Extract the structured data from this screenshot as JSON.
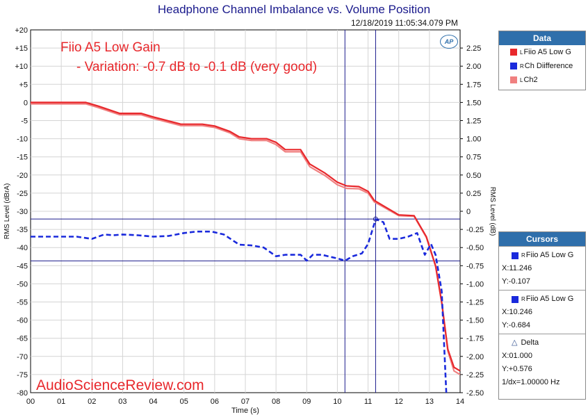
{
  "chart_data": {
    "type": "line",
    "title": "Headphone Channel Imbalance vs. Volume Position",
    "timestamp": "12/18/2019 11:05:34.079 PM",
    "annotation_line1": "Fiio A5 Low Gain",
    "annotation_line2": "- Variation: -0.7 dB to -0.1 dB (very good)",
    "watermark": "AudioScienceReview.com",
    "ap_logo_text": "AP",
    "xlabel": "Time (s)",
    "ylabel_left": "RMS Level (dBrA)",
    "ylabel_right": "RMS Level (dB)",
    "xlim": [
      0,
      14
    ],
    "ylim_left": [
      -80,
      20
    ],
    "ylim_right": [
      -2.5,
      2.5
    ],
    "x_ticks": [
      "00",
      "01",
      "02",
      "03",
      "04",
      "05",
      "06",
      "07",
      "08",
      "09",
      "10",
      "11",
      "12",
      "13",
      "14"
    ],
    "y_left_ticks": [
      "+20",
      "+15",
      "+10",
      "+5",
      "0",
      "-5",
      "-10",
      "-15",
      "-20",
      "-25",
      "-30",
      "-35",
      "-40",
      "-45",
      "-50",
      "-55",
      "-60",
      "-65",
      "-70",
      "-75",
      "-80"
    ],
    "y_right_ticks": [
      "2.25",
      "2.00",
      "1.75",
      "1.50",
      "1.25",
      "1.00",
      "0.75",
      "0.50",
      "0.25",
      "0",
      "-0.25",
      "-0.50",
      "-0.75",
      "-1.00",
      "-1.25",
      "-1.50",
      "-1.75",
      "-2.00",
      "-2.25",
      "-2.50"
    ],
    "grid": true,
    "series": [
      {
        "name": "Fiio A5 Low G",
        "color": "#e8282c",
        "axis": "left",
        "style": "solid",
        "x": [
          0,
          1.0,
          1.8,
          2.2,
          2.9,
          3.6,
          4.0,
          4.9,
          5.6,
          6.0,
          6.5,
          6.8,
          7.2,
          7.7,
          8.0,
          8.3,
          8.8,
          9.1,
          9.6,
          10.0,
          10.3,
          10.7,
          11.0,
          11.2,
          11.6,
          12.0,
          12.5,
          12.9,
          13.2,
          13.4,
          13.6,
          13.8,
          14.0
        ],
        "y": [
          0,
          0,
          0,
          -1,
          -3,
          -3,
          -4,
          -6,
          -6,
          -6.5,
          -8,
          -9.5,
          -10,
          -10,
          -11,
          -13,
          -13,
          -17,
          -19.5,
          -22,
          -23,
          -23.2,
          -24.5,
          -27,
          -29,
          -31,
          -31.2,
          -37,
          -45,
          -55,
          -68,
          -73,
          -74
        ]
      },
      {
        "name": "Ch Diifference",
        "color": "#1a2adc",
        "axis": "right",
        "style": "dashed",
        "x": [
          0,
          0.5,
          1.0,
          1.5,
          2.0,
          2.4,
          2.7,
          3.0,
          3.5,
          4.0,
          4.5,
          5.0,
          5.4,
          5.9,
          6.3,
          6.8,
          7.2,
          7.6,
          8.0,
          8.3,
          8.8,
          9.0,
          9.2,
          9.5,
          9.8,
          10.0,
          10.25,
          10.5,
          10.8,
          11.0,
          11.25,
          11.5,
          11.7,
          12.0,
          12.3,
          12.6,
          12.85,
          13.05,
          13.2,
          13.4,
          13.55
        ],
        "y": [
          -0.35,
          -0.35,
          -0.35,
          -0.35,
          -0.38,
          -0.32,
          -0.33,
          -0.32,
          -0.33,
          -0.35,
          -0.34,
          -0.3,
          -0.28,
          -0.28,
          -0.32,
          -0.46,
          -0.47,
          -0.5,
          -0.62,
          -0.6,
          -0.6,
          -0.68,
          -0.6,
          -0.6,
          -0.63,
          -0.65,
          -0.68,
          -0.62,
          -0.58,
          -0.45,
          -0.107,
          -0.15,
          -0.38,
          -0.38,
          -0.35,
          -0.3,
          -0.6,
          -0.45,
          -0.6,
          -1.1,
          -2.5
        ]
      },
      {
        "name": "Ch2",
        "color": "#f08080",
        "axis": "left",
        "style": "solid",
        "x": [
          0,
          1.0,
          1.8,
          2.2,
          2.9,
          3.6,
          4.0,
          4.9,
          5.6,
          6.0,
          6.5,
          6.8,
          7.2,
          7.7,
          8.0,
          8.3,
          8.8,
          9.1,
          9.6,
          10.0,
          10.3,
          10.7,
          11.0,
          11.2,
          11.6,
          12.0,
          12.5,
          12.9,
          13.2,
          13.4,
          13.6,
          13.8,
          14.0
        ],
        "y": [
          -0.4,
          -0.4,
          -0.4,
          -1.4,
          -3.4,
          -3.4,
          -4.4,
          -6.4,
          -6.4,
          -6.9,
          -8.4,
          -10,
          -10.5,
          -10.5,
          -11.6,
          -13.6,
          -13.6,
          -17.7,
          -20.2,
          -22.7,
          -23.7,
          -23.8,
          -25,
          -27.4,
          -29.3,
          -31.2,
          -31.4,
          -37.2,
          -45.2,
          -55.3,
          -68.5,
          -74,
          -75
        ]
      }
    ],
    "cursors": {
      "x": [
        10.246,
        11.246
      ],
      "y_right": [
        -0.684,
        -0.107
      ]
    }
  },
  "legend_panel": {
    "header": "Data",
    "items": [
      {
        "tag": "L",
        "label": "Fiio A5 Low G",
        "color": "#e8282c"
      },
      {
        "tag": "R",
        "label": "Ch Diifference",
        "color": "#1a2adc"
      },
      {
        "tag": "L",
        "label": "Ch2",
        "color": "#f08080"
      }
    ]
  },
  "cursors_panel": {
    "header": "Cursors",
    "cursor1": {
      "tag": "R",
      "name": "Fiio A5 Low G",
      "x": "X:11.246",
      "y": "Y:-0.107",
      "color": "#1a2adc"
    },
    "cursor2": {
      "tag": "R",
      "name": "Fiio A5 Low G",
      "x": "X:10.246",
      "y": "Y:-0.684",
      "color": "#1a2adc"
    },
    "delta": {
      "label": "Delta",
      "x": "X:01.000",
      "y": "Y:+0.576",
      "freq": "1/dx=1.00000 Hz"
    }
  }
}
